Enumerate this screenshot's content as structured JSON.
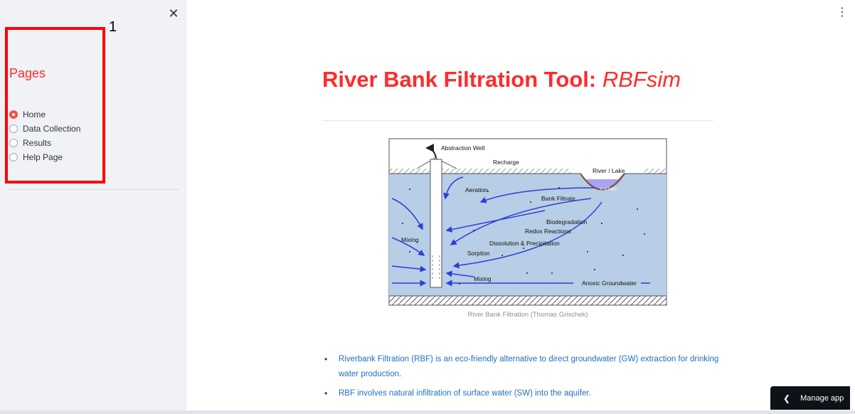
{
  "sidebar": {
    "close_icon": "close-icon",
    "annotation_number": "1",
    "pages_heading": "Pages",
    "items": [
      {
        "label": "Home",
        "selected": true
      },
      {
        "label": "Data Collection",
        "selected": false
      },
      {
        "label": "Results",
        "selected": false
      },
      {
        "label": "Help Page",
        "selected": false
      }
    ]
  },
  "header": {
    "menu_icon": "more-vertical-icon"
  },
  "main": {
    "title_main": "River Bank Filtration Tool: ",
    "title_italic": "RBFsim",
    "figure": {
      "labels": {
        "abstraction_well": "Abstraction Well",
        "recharge": "Recharge",
        "river_lake": "River / Lake",
        "htwd": "© HTWD",
        "aeration": "Aeration",
        "bank_filtrate": "Bank Filtrate",
        "biodegradation": "Biodegradation",
        "redox": "Redox Reactions",
        "dissolution": "Dissolution & Precipitation",
        "mixing_left": "Mixing",
        "sorption": "Sorption",
        "mixing_bottom": "Mixing",
        "anoxic": "Anoxic Groundwater"
      },
      "caption": "River Bank Filtration (Thomas Grischek)"
    },
    "bullets": [
      "Riverbank Filtration (RBF) is an eco-friendly alternative to direct groundwater (GW) extraction for drinking water production.",
      "RBF involves natural infiltration of surface water (SW) into the aquifer."
    ]
  },
  "footer": {
    "manage_app_label": "Manage app",
    "manage_app_icon": "chevron-left-icon"
  },
  "colors": {
    "accent": "#ff2b2b",
    "link": "#1f6fc0",
    "sidebar_bg": "#f0f2f6",
    "water": "#b8cde6",
    "river": "#a8a2f0"
  }
}
